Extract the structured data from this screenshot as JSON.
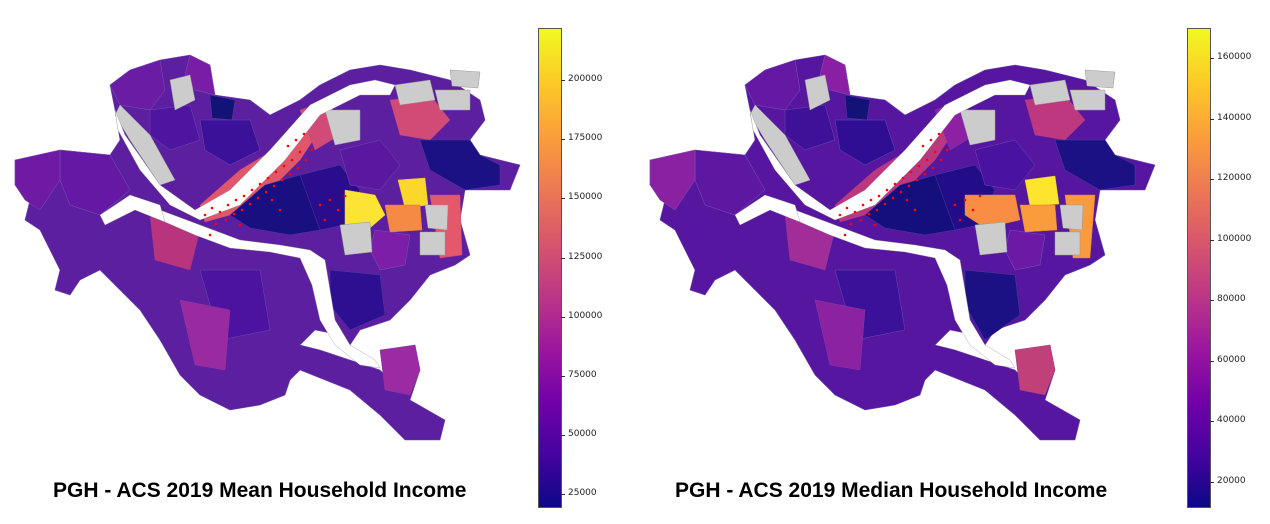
{
  "maps": [
    {
      "title": "PGH - ACS 2019 Mean Household Income",
      "colorbar": {
        "ticks": [
          "200000",
          "175000",
          "150000",
          "125000",
          "100000",
          "75000",
          "50000",
          "25000"
        ],
        "min": 20000,
        "max": 222000
      }
    },
    {
      "title": "PGH - ACS 2019 Median Household Income",
      "colorbar": {
        "ticks": [
          "160000",
          "140000",
          "120000",
          "100000",
          "80000",
          "60000",
          "40000",
          "20000"
        ],
        "min": 12000,
        "max": 170000
      }
    }
  ],
  "colors": {
    "colormap": [
      "#0d0887",
      "#46039f",
      "#7201a8",
      "#9c179e",
      "#bd3786",
      "#d8576b",
      "#ed7953",
      "#fb9f3a",
      "#fdca26",
      "#f0f921"
    ],
    "missing": "#cccccc",
    "river": "#ffffff",
    "points": "#ff0000"
  }
}
